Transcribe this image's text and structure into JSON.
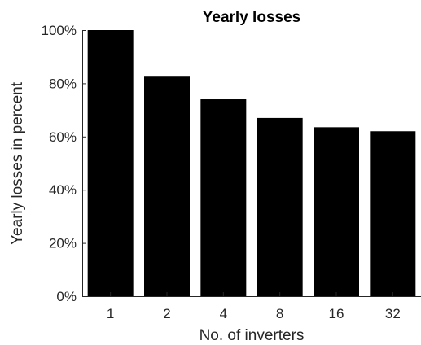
{
  "chart_data": {
    "type": "bar",
    "title": "Yearly losses",
    "xlabel": "No. of inverters",
    "ylabel": "Yearly losses in percent",
    "categories": [
      "1",
      "2",
      "4",
      "8",
      "16",
      "32"
    ],
    "values": [
      100,
      82.5,
      74,
      67,
      63.5,
      62
    ],
    "ylim": [
      0,
      100
    ],
    "yticks": [
      "0%",
      "20%",
      "40%",
      "60%",
      "80%",
      "100%"
    ],
    "bar_color": "#000000",
    "grid": false,
    "legend": "none"
  }
}
